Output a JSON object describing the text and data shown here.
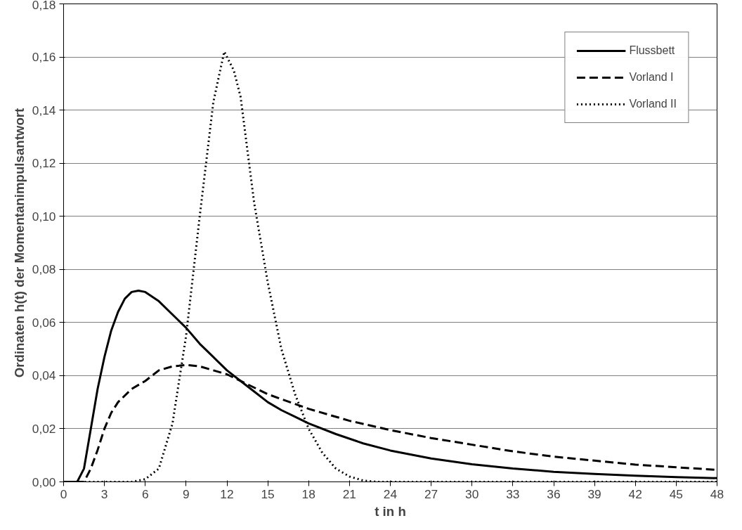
{
  "chart_data": {
    "type": "line",
    "xlabel": "t in h",
    "ylabel": "Ordinaten h(t) der Momentanimpulsantwort",
    "xlim": [
      0,
      48
    ],
    "ylim": [
      0,
      0.18
    ],
    "xticks": [
      0,
      3,
      6,
      9,
      12,
      15,
      18,
      21,
      24,
      27,
      30,
      33,
      36,
      39,
      42,
      45,
      48
    ],
    "yticks": [
      {
        "value": 0,
        "label": "0,00"
      },
      {
        "value": 0.02,
        "label": "0,02"
      },
      {
        "value": 0.04,
        "label": "0,04"
      },
      {
        "value": 0.06,
        "label": "0,06"
      },
      {
        "value": 0.08,
        "label": "0,08"
      },
      {
        "value": 0.1,
        "label": "0,10"
      },
      {
        "value": 0.12,
        "label": "0,12"
      },
      {
        "value": 0.14,
        "label": "0,14"
      },
      {
        "value": 0.16,
        "label": "0,16"
      },
      {
        "value": 0.18,
        "label": "0,18"
      }
    ],
    "grid": "y",
    "legend": "top right",
    "marker": "none",
    "series": [
      {
        "name": "Flussbett",
        "color": "#000000",
        "line_style": "solid",
        "x": [
          0,
          1,
          1.5,
          2,
          2.5,
          3,
          3.5,
          4,
          4.5,
          5,
          5.5,
          6,
          7,
          8,
          9,
          10,
          11,
          12,
          13,
          14,
          15,
          16,
          17,
          18,
          20,
          22,
          24,
          27,
          30,
          33,
          36,
          39,
          42,
          45,
          48
        ],
        "values": [
          0,
          0,
          0.005,
          0.02,
          0.035,
          0.047,
          0.057,
          0.064,
          0.069,
          0.0715,
          0.072,
          0.0715,
          0.068,
          0.063,
          0.058,
          0.052,
          0.047,
          0.042,
          0.038,
          0.034,
          0.03,
          0.027,
          0.0245,
          0.022,
          0.018,
          0.0145,
          0.0118,
          0.0088,
          0.0066,
          0.005,
          0.0038,
          0.003,
          0.0023,
          0.0018,
          0.0014
        ]
      },
      {
        "name": "Vorland I",
        "color": "#000000",
        "line_style": "dashed",
        "x": [
          0,
          1.5,
          2,
          2.5,
          3,
          3.5,
          4,
          5,
          6,
          7,
          8,
          9,
          10,
          11,
          12,
          13,
          15,
          18,
          21,
          24,
          27,
          30,
          33,
          36,
          39,
          42,
          45,
          48
        ],
        "values": [
          0,
          0,
          0.005,
          0.012,
          0.02,
          0.026,
          0.03,
          0.035,
          0.038,
          0.042,
          0.0435,
          0.044,
          0.0435,
          0.042,
          0.0405,
          0.038,
          0.033,
          0.0275,
          0.023,
          0.0195,
          0.0165,
          0.014,
          0.0115,
          0.0095,
          0.008,
          0.0065,
          0.0055,
          0.0045
        ]
      },
      {
        "name": "Vorland II",
        "color": "#000000",
        "line_style": "dotted",
        "x": [
          0,
          5,
          6,
          7,
          8,
          9,
          10,
          11,
          11.8,
          12.5,
          13,
          14,
          15,
          16,
          17,
          18,
          19,
          20,
          21,
          22,
          23,
          48
        ],
        "values": [
          0,
          0,
          0.001,
          0.005,
          0.022,
          0.055,
          0.1,
          0.143,
          0.162,
          0.155,
          0.145,
          0.105,
          0.075,
          0.05,
          0.033,
          0.02,
          0.011,
          0.005,
          0.002,
          0.0005,
          0,
          0
        ]
      }
    ]
  }
}
